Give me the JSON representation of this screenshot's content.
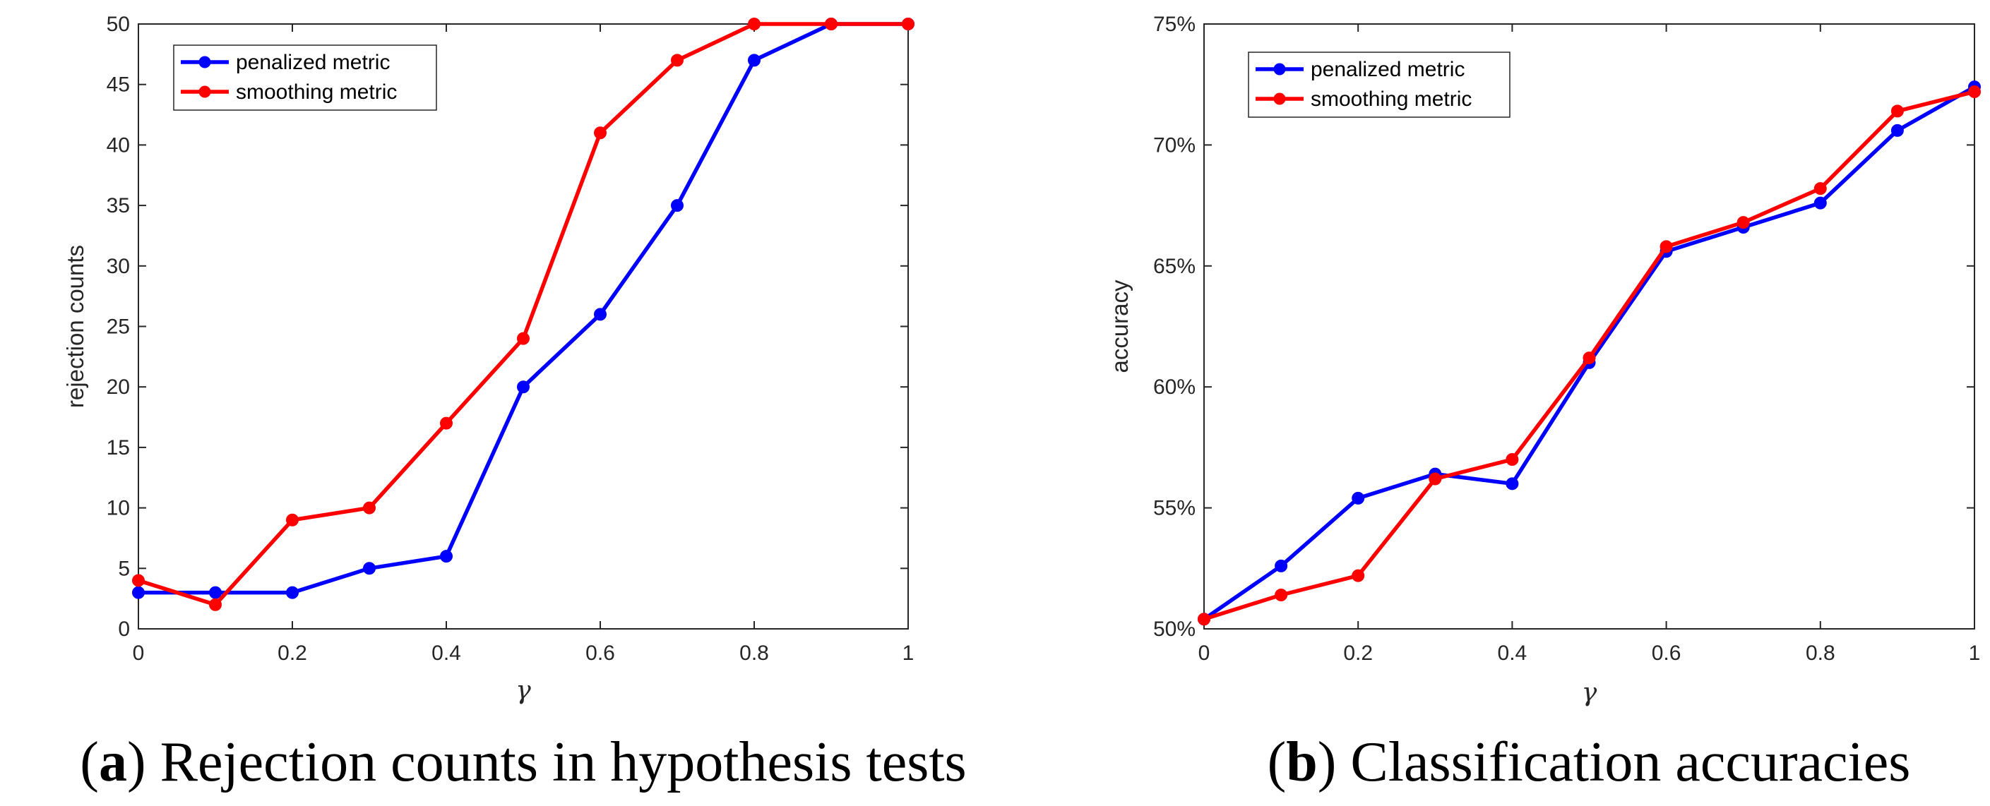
{
  "chart_data": [
    {
      "type": "line",
      "panel_tag": "a",
      "caption": "Rejection counts in hypothesis tests",
      "xlabel": "γ",
      "ylabel": "rejection counts",
      "xlim": [
        0,
        1
      ],
      "ylim": [
        0,
        50
      ],
      "grid": false,
      "legend_position": "top-left",
      "x_ticks": [
        0,
        0.2,
        0.4,
        0.6,
        0.8,
        1
      ],
      "x_tick_labels": [
        "0",
        "0.2",
        "0.4",
        "0.6",
        "0.8",
        "1"
      ],
      "y_ticks": [
        0,
        5,
        10,
        15,
        20,
        25,
        30,
        35,
        40,
        45,
        50
      ],
      "y_tick_labels": [
        "0",
        "5",
        "10",
        "15",
        "20",
        "25",
        "30",
        "35",
        "40",
        "45",
        "50"
      ],
      "x": [
        0,
        0.1,
        0.2,
        0.3,
        0.4,
        0.5,
        0.6,
        0.7,
        0.8,
        0.9,
        1.0
      ],
      "series": [
        {
          "name": "penalized metric",
          "color": "#0000ff",
          "values": [
            3,
            3,
            3,
            5,
            6,
            20,
            26,
            35,
            47,
            50,
            50
          ]
        },
        {
          "name": "smoothing metric",
          "color": "#ff0000",
          "values": [
            4,
            2,
            9,
            10,
            17,
            24,
            41,
            47,
            50,
            50,
            50
          ]
        }
      ]
    },
    {
      "type": "line",
      "panel_tag": "b",
      "caption": "Classification accuracies",
      "xlabel": "γ",
      "ylabel": "accuracy",
      "xlim": [
        0,
        1
      ],
      "ylim": [
        50,
        75
      ],
      "grid": false,
      "legend_position": "top-left",
      "x_ticks": [
        0,
        0.2,
        0.4,
        0.6,
        0.8,
        1
      ],
      "x_tick_labels": [
        "0",
        "0.2",
        "0.4",
        "0.6",
        "0.8",
        "1"
      ],
      "y_ticks": [
        50,
        55,
        60,
        65,
        70,
        75
      ],
      "y_tick_labels": [
        "50%",
        "55%",
        "60%",
        "65%",
        "70%",
        "75%"
      ],
      "x": [
        0,
        0.1,
        0.2,
        0.3,
        0.4,
        0.5,
        0.6,
        0.7,
        0.8,
        0.9,
        1.0
      ],
      "series": [
        {
          "name": "penalized metric",
          "color": "#0000ff",
          "values": [
            50.4,
            52.6,
            55.4,
            56.4,
            56.0,
            61.0,
            65.6,
            66.6,
            67.6,
            70.6,
            72.4
          ]
        },
        {
          "name": "smoothing metric",
          "color": "#ff0000",
          "values": [
            50.4,
            51.4,
            52.2,
            56.2,
            57.0,
            61.2,
            65.8,
            66.8,
            68.2,
            71.4,
            72.2
          ]
        }
      ]
    }
  ]
}
